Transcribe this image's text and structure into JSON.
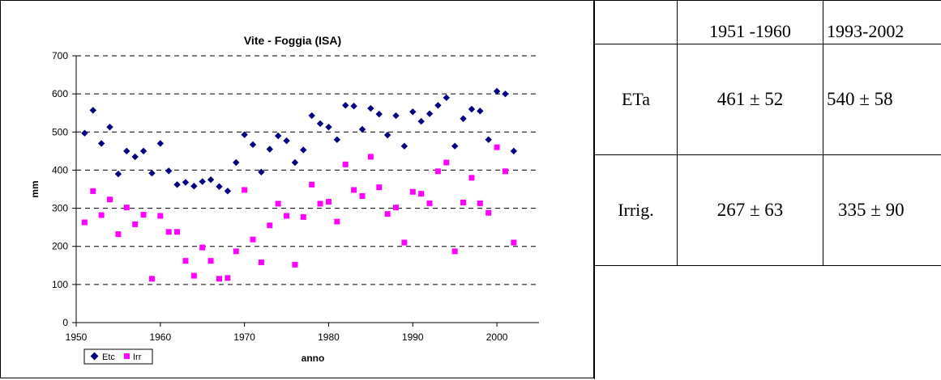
{
  "chart_data": {
    "type": "scatter",
    "title": "Vite - Foggia (ISA)",
    "xlabel": "anno",
    "ylabel": "mm",
    "xlim": [
      1950,
      2005
    ],
    "ylim": [
      0,
      700
    ],
    "xticks": [
      1950,
      1960,
      1970,
      1980,
      1990,
      2000
    ],
    "yticks": [
      0,
      100,
      200,
      300,
      400,
      500,
      600,
      700
    ],
    "grid": "horizontal dashed",
    "legend_position": "bottom-left",
    "series": [
      {
        "name": "Etc",
        "color": "#000080",
        "marker": "diamond",
        "x": [
          1951,
          1952,
          1953,
          1954,
          1955,
          1956,
          1957,
          1958,
          1959,
          1960,
          1961,
          1962,
          1963,
          1964,
          1965,
          1966,
          1967,
          1968,
          1969,
          1970,
          1971,
          1972,
          1973,
          1974,
          1975,
          1976,
          1977,
          1978,
          1979,
          1980,
          1981,
          1982,
          1983,
          1984,
          1985,
          1986,
          1987,
          1988,
          1989,
          1990,
          1991,
          1992,
          1993,
          1994,
          1995,
          1996,
          1997,
          1998,
          1999,
          2000,
          2001,
          2002
        ],
        "y": [
          497,
          557,
          470,
          513,
          390,
          450,
          435,
          450,
          392,
          470,
          398,
          362,
          368,
          358,
          370,
          375,
          357,
          345,
          420,
          493,
          467,
          395,
          455,
          490,
          477,
          420,
          453,
          543,
          522,
          513,
          480,
          570,
          568,
          507,
          562,
          547,
          492,
          543,
          463,
          553,
          528,
          548,
          570,
          590,
          463,
          535,
          560,
          555,
          480,
          607,
          600,
          450
        ]
      },
      {
        "name": "Irr",
        "color": "#ff00ff",
        "marker": "square",
        "x": [
          1951,
          1952,
          1953,
          1954,
          1955,
          1956,
          1957,
          1958,
          1959,
          1960,
          1961,
          1962,
          1963,
          1964,
          1965,
          1966,
          1967,
          1968,
          1969,
          1970,
          1971,
          1972,
          1973,
          1974,
          1975,
          1976,
          1977,
          1978,
          1979,
          1980,
          1981,
          1982,
          1983,
          1984,
          1985,
          1986,
          1987,
          1988,
          1989,
          1990,
          1991,
          1992,
          1993,
          1994,
          1995,
          1996,
          1997,
          1998,
          1999,
          2000,
          2001,
          2002
        ],
        "y": [
          263,
          345,
          282,
          323,
          232,
          302,
          258,
          283,
          115,
          280,
          238,
          238,
          162,
          123,
          197,
          162,
          115,
          117,
          187,
          348,
          218,
          158,
          255,
          312,
          280,
          152,
          277,
          362,
          312,
          317,
          265,
          415,
          348,
          332,
          435,
          355,
          285,
          302,
          210,
          343,
          338,
          313,
          397,
          420,
          187,
          315,
          380,
          313,
          288,
          460,
          397,
          210
        ]
      }
    ]
  },
  "table": {
    "headers": [
      "",
      "1951 -1960",
      "1993-2002"
    ],
    "rows": [
      {
        "label": "ETa",
        "v1": "461 ± 52",
        "v2": "540 ± 58"
      },
      {
        "label": "Irrig.",
        "v1": "267 ± 63",
        "v2": "335 ± 90"
      }
    ]
  }
}
